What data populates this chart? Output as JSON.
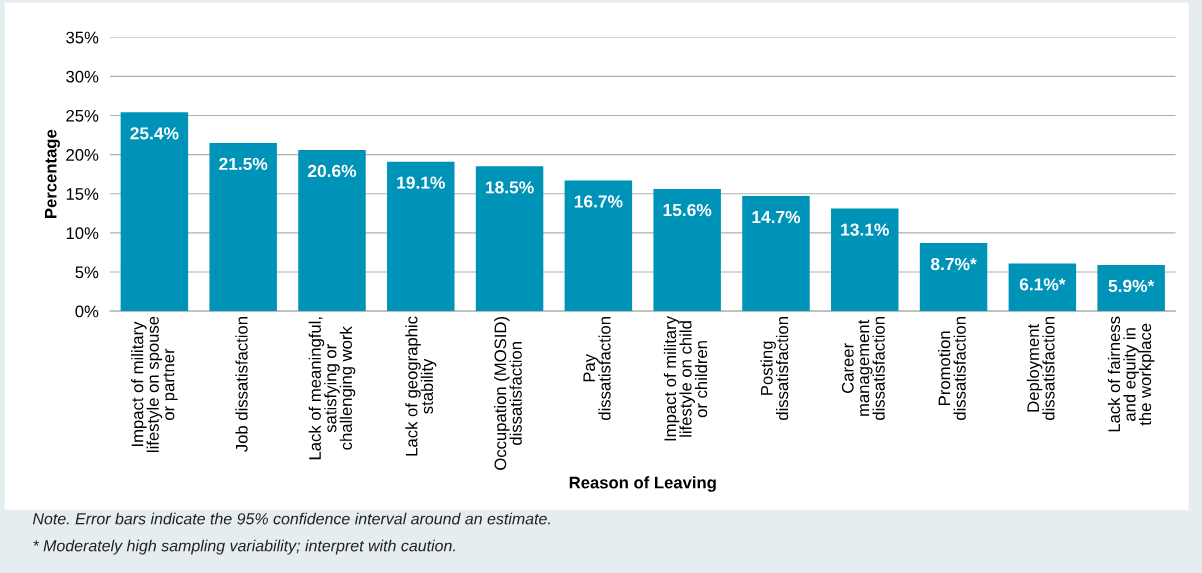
{
  "chart_data": {
    "type": "bar",
    "xlabel": "Reason of Leaving",
    "ylabel": "Percentage",
    "categories": [
      "Impact of military\nlifestyle on spouse\nor partner",
      "Job dissatisfaction",
      "Lack of meaningful,\nsatisfying or\nchallenging work",
      "Lack of geographic\nstability",
      "Occupation (MOSID)\ndissatisfaction",
      "Pay\ndissatisfaction",
      "Impact of military\nlifestyle on child\nor children",
      "Posting\ndissatisfaction",
      "Career\nmanagement\ndissatisfaction",
      "Promotion\ndissatisfaction",
      "Deployment\ndissatisfaction",
      "Lack of fairness\nand equity in\nthe workplace"
    ],
    "values": [
      25.4,
      21.5,
      20.6,
      19.1,
      18.5,
      16.7,
      15.6,
      14.7,
      13.1,
      8.7,
      6.1,
      5.9
    ],
    "value_labels": [
      "25.4%",
      "21.5%",
      "20.6%",
      "19.1%",
      "18.5%",
      "16.7%",
      "15.6%",
      "14.7%",
      "13.1%",
      "8.7%*",
      "6.1%*",
      "5.9%*"
    ],
    "color": "#0093b8",
    "ylim": [
      0,
      35
    ],
    "yticks": [
      {
        "value": 0,
        "label": "0%"
      },
      {
        "value": 5,
        "label": "5%"
      },
      {
        "value": 10,
        "label": "10%"
      },
      {
        "value": 15,
        "label": "15%"
      },
      {
        "value": 20,
        "label": "20%"
      },
      {
        "value": 25,
        "label": "25%"
      },
      {
        "value": 30,
        "label": "30%"
      },
      {
        "value": 35,
        "label": "35%"
      }
    ],
    "grid": "y",
    "annotations": [
      "Note. Error bars indicate the 95% confidence interval around an estimate.",
      "* Moderately high sampling variability; interpret with caution."
    ]
  }
}
